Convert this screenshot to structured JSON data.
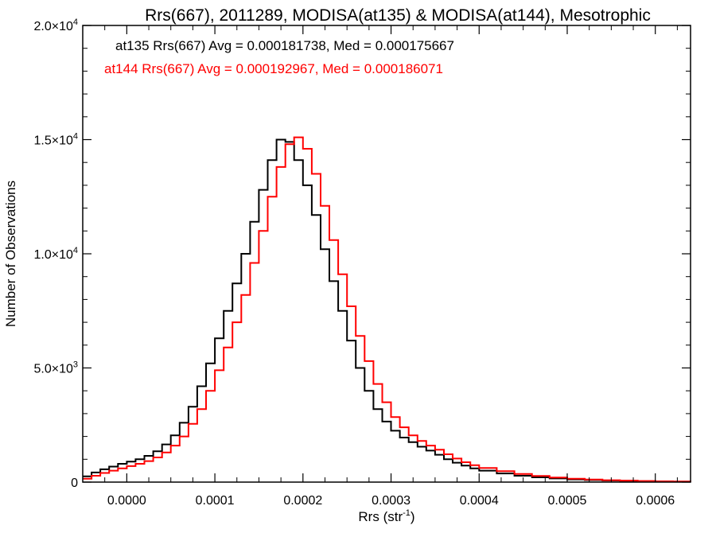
{
  "chart_data": {
    "type": "line",
    "title": "Rrs(667), 2011289, MODISA(at135) & MODISA(at144), Mesotrophic",
    "xlabel": "Rrs (str",
    "xlabel_sup": "-1",
    "xlabel_end": ")",
    "ylabel": "Number of Observations",
    "xlim": [
      -5e-05,
      0.00064
    ],
    "ylim": [
      0,
      20000
    ],
    "x_ticks": [
      0.0,
      0.0001,
      0.0002,
      0.0003,
      0.0004,
      0.0005,
      0.0006
    ],
    "x_tick_labels": [
      "0.0000",
      "0.0001",
      "0.0002",
      "0.0003",
      "0.0004",
      "0.0005",
      "0.0006"
    ],
    "y_ticks": [
      {
        "value": 0,
        "mantissa": "0",
        "exponent": ""
      },
      {
        "value": 5000,
        "mantissa": "5.0×10",
        "exponent": "3"
      },
      {
        "value": 10000,
        "mantissa": "1.0×10",
        "exponent": "4"
      },
      {
        "value": 15000,
        "mantissa": "1.5×10",
        "exponent": "4"
      },
      {
        "value": 20000,
        "mantissa": "2.0×10",
        "exponent": "4"
      }
    ],
    "grid": false,
    "annotations": [
      {
        "text": "at135 Rrs(667) Avg = 0.000181738, Med = 0.000175667",
        "color": "#000000"
      },
      {
        "text": "at144 Rrs(667) Avg = 0.000192967, Med = 0.000186071",
        "color": "#ff0000"
      }
    ],
    "series": [
      {
        "color": "#000000",
        "step": true,
        "x": [
          -5e-05,
          -4e-05,
          -3e-05,
          -2e-05,
          -1e-05,
          0.0,
          1e-05,
          2e-05,
          3e-05,
          4e-05,
          5e-05,
          6e-05,
          7e-05,
          8e-05,
          9e-05,
          0.0001,
          0.00011,
          0.00012,
          0.00013,
          0.00014,
          0.00015,
          0.00016,
          0.00017,
          0.00018,
          0.00019,
          0.0002,
          0.00021,
          0.00022,
          0.00023,
          0.00024,
          0.00025,
          0.00026,
          0.00027,
          0.00028,
          0.00029,
          0.0003,
          0.00031,
          0.00032,
          0.00033,
          0.00034,
          0.00035,
          0.00036,
          0.00037,
          0.00038,
          0.00039,
          0.0004,
          0.00042,
          0.00044,
          0.00046,
          0.00048,
          0.0005,
          0.00052,
          0.00054,
          0.00056,
          0.00058,
          0.0006,
          0.00062,
          0.00064
        ],
        "y": [
          250,
          420,
          560,
          680,
          800,
          900,
          1000,
          1150,
          1350,
          1650,
          2050,
          2600,
          3300,
          4200,
          5200,
          6300,
          7500,
          8700,
          10000,
          11400,
          12800,
          14100,
          15000,
          14900,
          14100,
          13000,
          11700,
          10200,
          8800,
          7500,
          6200,
          5000,
          4000,
          3200,
          2650,
          2250,
          1950,
          1750,
          1550,
          1380,
          1200,
          1000,
          850,
          720,
          600,
          500,
          380,
          280,
          210,
          160,
          120,
          90,
          70,
          55,
          40,
          30,
          20,
          15
        ]
      },
      {
        "color": "#ff0000",
        "step": true,
        "x": [
          -5e-05,
          -4e-05,
          -3e-05,
          -2e-05,
          -1e-05,
          0.0,
          1e-05,
          2e-05,
          3e-05,
          4e-05,
          5e-05,
          6e-05,
          7e-05,
          8e-05,
          9e-05,
          0.0001,
          0.00011,
          0.00012,
          0.00013,
          0.00014,
          0.00015,
          0.00016,
          0.00017,
          0.00018,
          0.00019,
          0.0002,
          0.00021,
          0.00022,
          0.00023,
          0.00024,
          0.00025,
          0.00026,
          0.00027,
          0.00028,
          0.00029,
          0.0003,
          0.00031,
          0.00032,
          0.00033,
          0.00034,
          0.00035,
          0.00036,
          0.00037,
          0.00038,
          0.00039,
          0.0004,
          0.00042,
          0.00044,
          0.00046,
          0.00048,
          0.0005,
          0.00052,
          0.00054,
          0.00056,
          0.00058,
          0.0006,
          0.00062,
          0.00064
        ],
        "y": [
          150,
          280,
          400,
          500,
          600,
          700,
          800,
          920,
          1080,
          1300,
          1600,
          2000,
          2550,
          3200,
          4000,
          4900,
          5900,
          7000,
          8200,
          9600,
          11000,
          12500,
          13800,
          14800,
          15100,
          14600,
          13500,
          12100,
          10600,
          9100,
          7700,
          6400,
          5300,
          4300,
          3500,
          2850,
          2400,
          2050,
          1800,
          1600,
          1420,
          1220,
          1030,
          870,
          740,
          620,
          480,
          360,
          270,
          200,
          150,
          110,
          85,
          65,
          50,
          35,
          25,
          18
        ]
      }
    ]
  }
}
